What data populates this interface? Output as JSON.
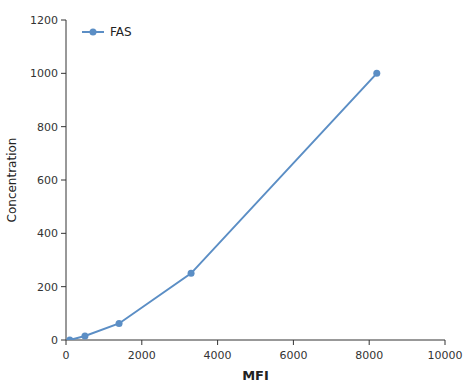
{
  "chart_data": {
    "type": "line",
    "x": [
      100,
      500,
      1400,
      3300,
      8200
    ],
    "series": [
      {
        "name": "FAS",
        "color": "#5B8EC5",
        "marker": "circle",
        "values": [
          0,
          15,
          62,
          250,
          1000
        ]
      }
    ],
    "xlabel": "MFI",
    "ylabel": "Concentration",
    "xlim": [
      0,
      10000
    ],
    "ylim": [
      0,
      1200
    ],
    "xticks": [
      0,
      2000,
      4000,
      6000,
      8000,
      10000
    ],
    "yticks": [
      0,
      200,
      400,
      600,
      800,
      1000,
      1200
    ],
    "grid": false,
    "legend": "upper left"
  }
}
